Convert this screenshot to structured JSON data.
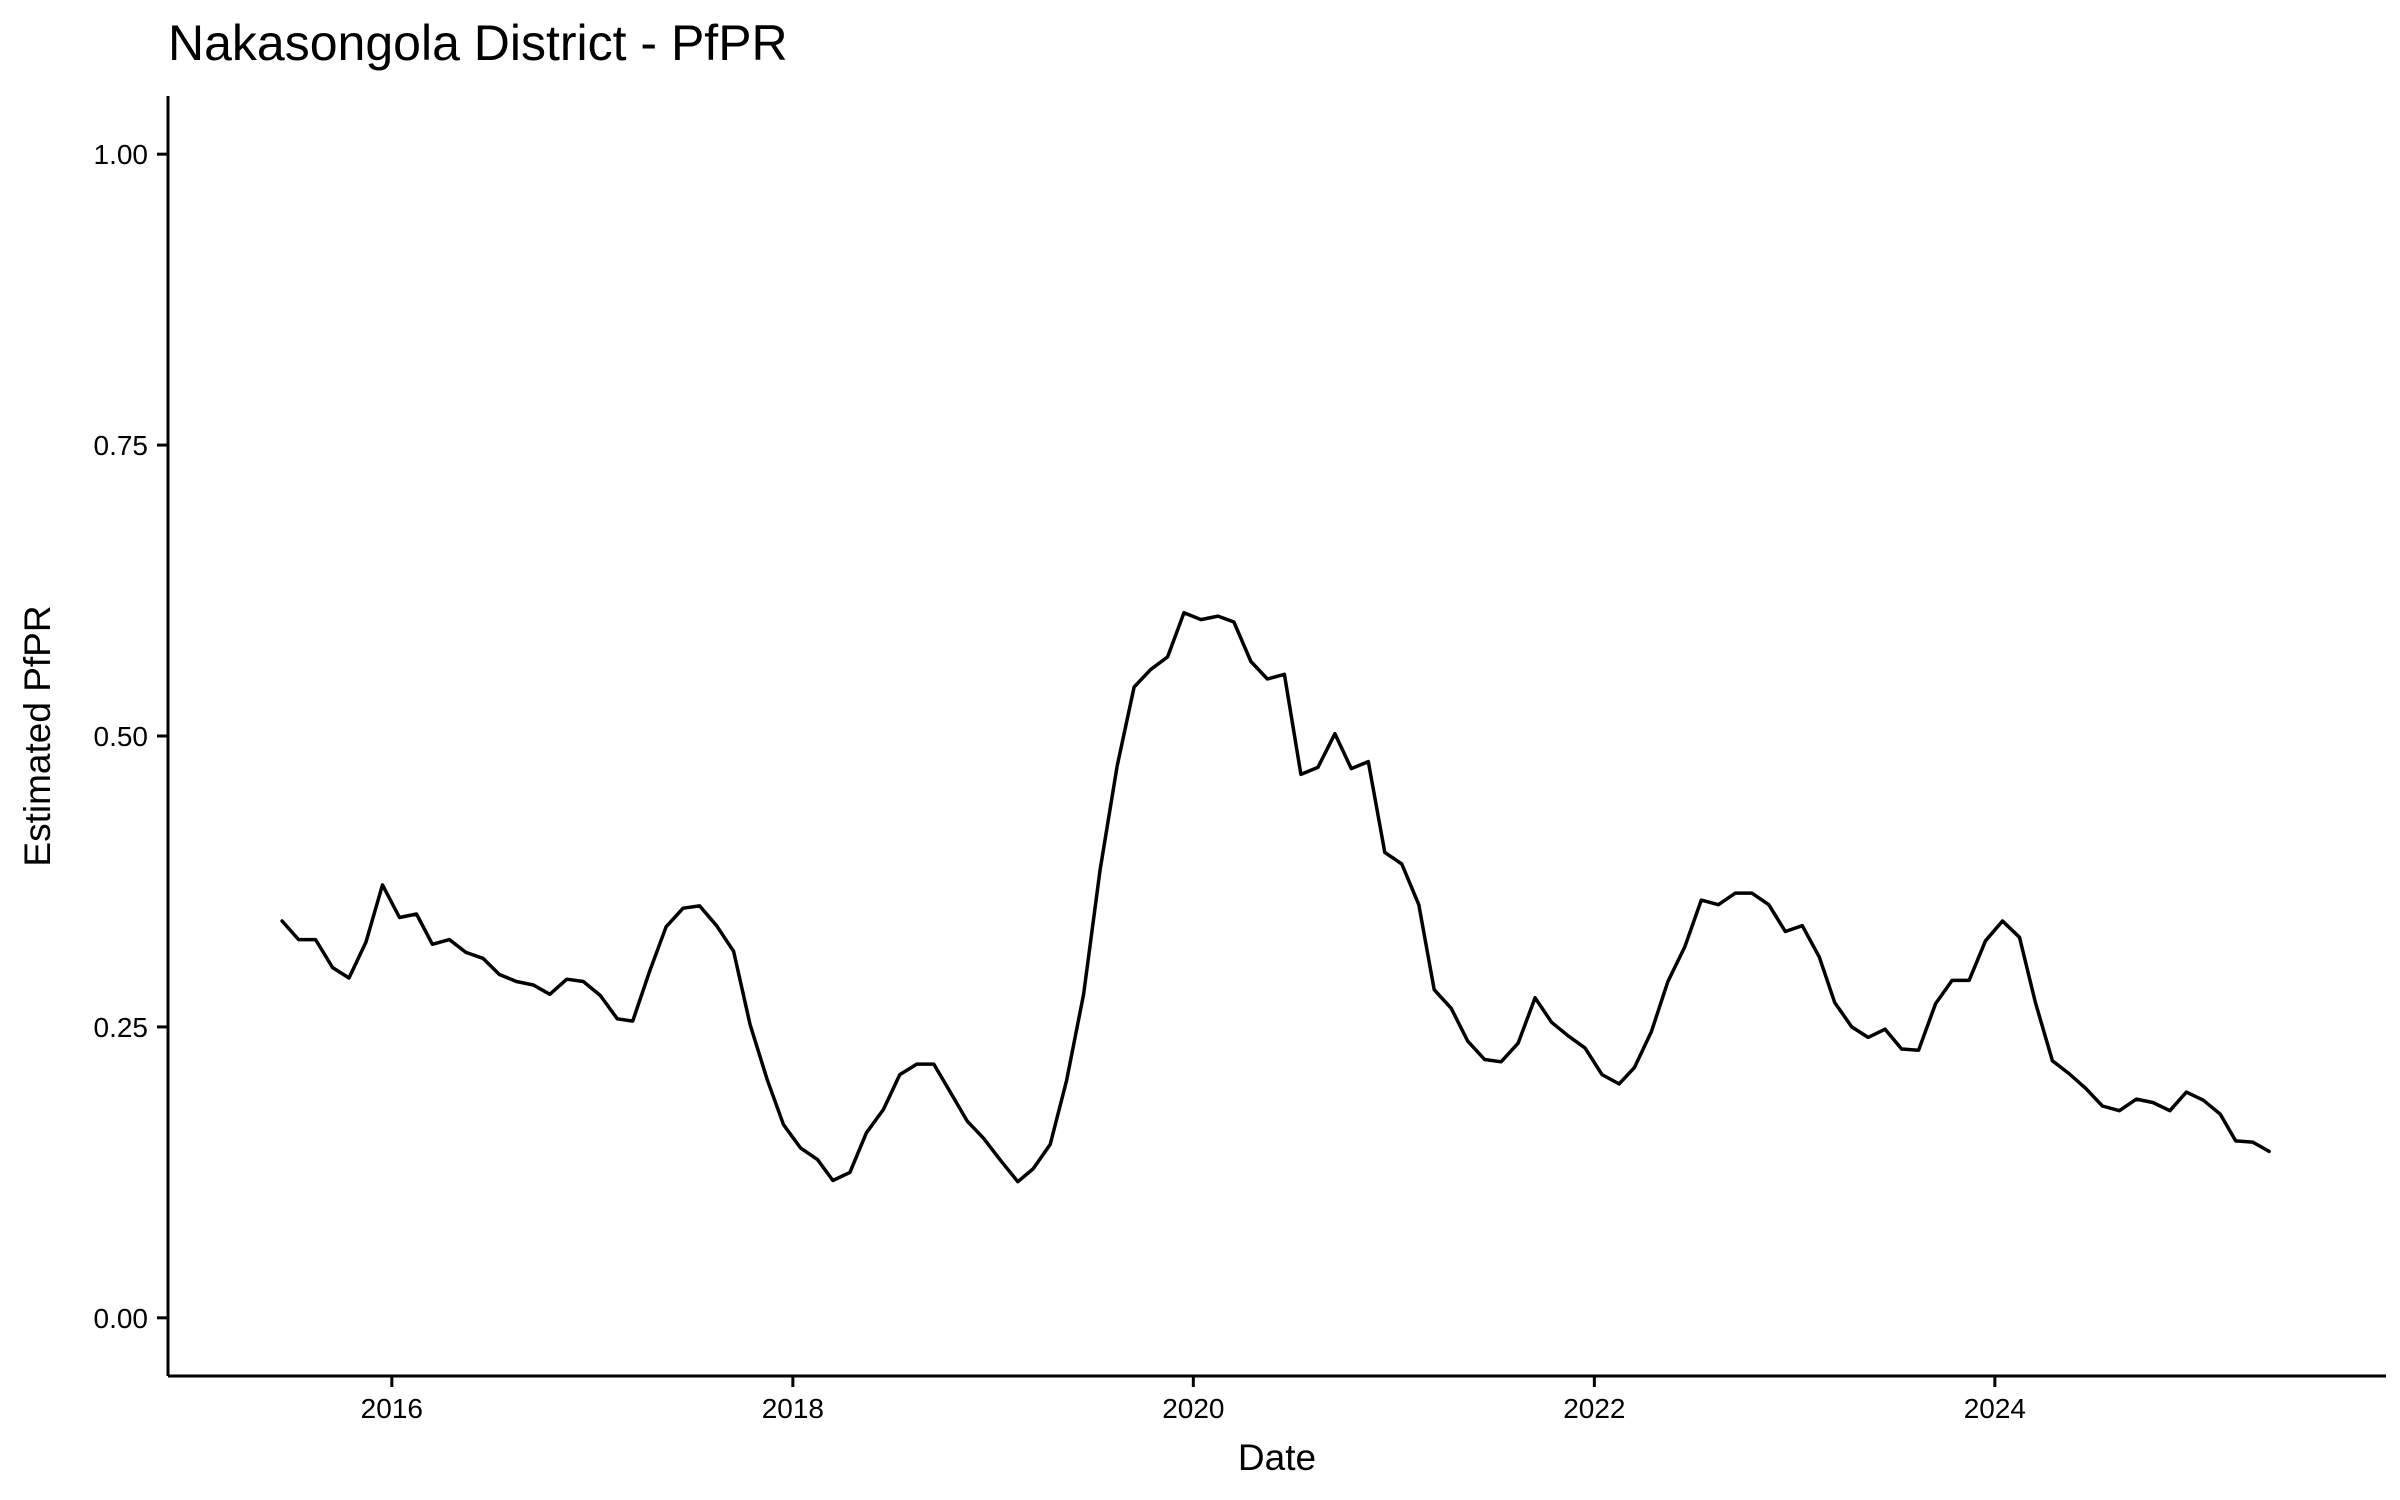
{
  "chart_data": {
    "type": "line",
    "title": "Nakasongola District - PfPR",
    "xlabel": "Date",
    "ylabel": "Estimated PfPR",
    "xlim": [
      "2014-11-19",
      "2025-12-14"
    ],
    "ylim": [
      -0.05,
      1.05
    ],
    "x_ticks": [
      "2016",
      "2018",
      "2020",
      "2022",
      "2024"
    ],
    "x_tick_dates": [
      "2016-01-01",
      "2018-01-01",
      "2020-01-01",
      "2022-01-01",
      "2024-01-01"
    ],
    "y_ticks": [
      "0.00",
      "0.25",
      "0.50",
      "0.75",
      "1.00"
    ],
    "y_tick_values": [
      0,
      0.25,
      0.5,
      0.75,
      1
    ],
    "grid": false,
    "legend": "none",
    "series": [
      {
        "color": "#000000",
        "x": [
          "2015-06",
          "2015-07",
          "2015-08",
          "2015-09",
          "2015-10",
          "2015-11",
          "2015-12",
          "2016-01",
          "2016-02",
          "2016-03",
          "2016-04",
          "2016-05",
          "2016-06",
          "2016-07",
          "2016-08",
          "2016-09",
          "2016-10",
          "2016-11",
          "2016-12",
          "2017-01",
          "2017-02",
          "2017-03",
          "2017-04",
          "2017-05",
          "2017-06",
          "2017-07",
          "2017-08",
          "2017-09",
          "2017-10",
          "2017-11",
          "2017-12",
          "2018-01",
          "2018-02",
          "2018-03",
          "2018-04",
          "2018-05",
          "2018-06",
          "2018-07",
          "2018-08",
          "2018-09",
          "2018-10",
          "2018-11",
          "2018-12",
          "2019-01",
          "2019-02",
          "2019-03",
          "2019-04",
          "2019-05",
          "2019-06",
          "2019-07",
          "2019-08",
          "2019-09",
          "2019-10",
          "2019-11",
          "2019-12",
          "2020-01",
          "2020-02",
          "2020-03",
          "2020-04",
          "2020-05",
          "2020-06",
          "2020-07",
          "2020-08",
          "2020-09",
          "2020-10",
          "2020-11",
          "2020-12",
          "2021-01",
          "2021-02",
          "2021-03",
          "2021-04",
          "2021-05",
          "2021-06",
          "2021-07",
          "2021-08",
          "2021-09",
          "2021-10",
          "2021-11",
          "2021-12",
          "2022-01",
          "2022-02",
          "2022-03",
          "2022-04",
          "2022-05",
          "2022-06",
          "2022-07",
          "2022-08",
          "2022-09",
          "2022-10",
          "2022-11",
          "2022-12",
          "2023-01",
          "2023-02",
          "2023-03",
          "2023-04",
          "2023-05",
          "2023-06",
          "2023-07",
          "2023-08",
          "2023-09",
          "2023-10",
          "2023-11",
          "2023-12",
          "2024-01",
          "2024-02",
          "2024-03",
          "2024-04",
          "2024-05",
          "2024-06",
          "2024-07",
          "2024-08",
          "2024-09",
          "2024-10",
          "2024-11",
          "2024-12",
          "2025-01",
          "2025-02",
          "2025-03",
          "2025-04",
          "2025-05"
        ],
        "values": [
          0.341,
          0.325,
          0.325,
          0.301,
          0.292,
          0.323,
          0.372,
          0.344,
          0.347,
          0.321,
          0.325,
          0.314,
          0.309,
          0.295,
          0.289,
          0.286,
          0.278,
          0.291,
          0.289,
          0.277,
          0.257,
          0.255,
          0.298,
          0.336,
          0.352,
          0.354,
          0.337,
          0.315,
          0.252,
          0.205,
          0.166,
          0.146,
          0.136,
          0.118,
          0.125,
          0.159,
          0.179,
          0.209,
          0.218,
          0.218,
          0.194,
          0.169,
          0.154,
          0.135,
          0.117,
          0.128,
          0.149,
          0.204,
          0.278,
          0.385,
          0.474,
          0.542,
          0.557,
          0.568,
          0.606,
          0.6,
          0.603,
          0.598,
          0.564,
          0.549,
          0.553,
          0.467,
          0.473,
          0.502,
          0.472,
          0.478,
          0.4,
          0.39,
          0.355,
          0.282,
          0.266,
          0.238,
          0.222,
          0.22,
          0.236,
          0.275,
          0.254,
          0.242,
          0.232,
          0.209,
          0.201,
          0.215,
          0.246,
          0.289,
          0.319,
          0.359,
          0.355,
          0.365,
          0.365,
          0.355,
          0.332,
          0.337,
          0.31,
          0.271,
          0.25,
          0.241,
          0.248,
          0.231,
          0.23,
          0.27,
          0.29,
          0.29,
          0.324,
          0.341,
          0.327,
          0.271,
          0.221,
          0.21,
          0.197,
          0.182,
          0.178,
          0.188,
          0.185,
          0.178,
          0.194,
          0.187,
          0.175,
          0.152,
          0.151,
          0.143
        ]
      }
    ]
  }
}
